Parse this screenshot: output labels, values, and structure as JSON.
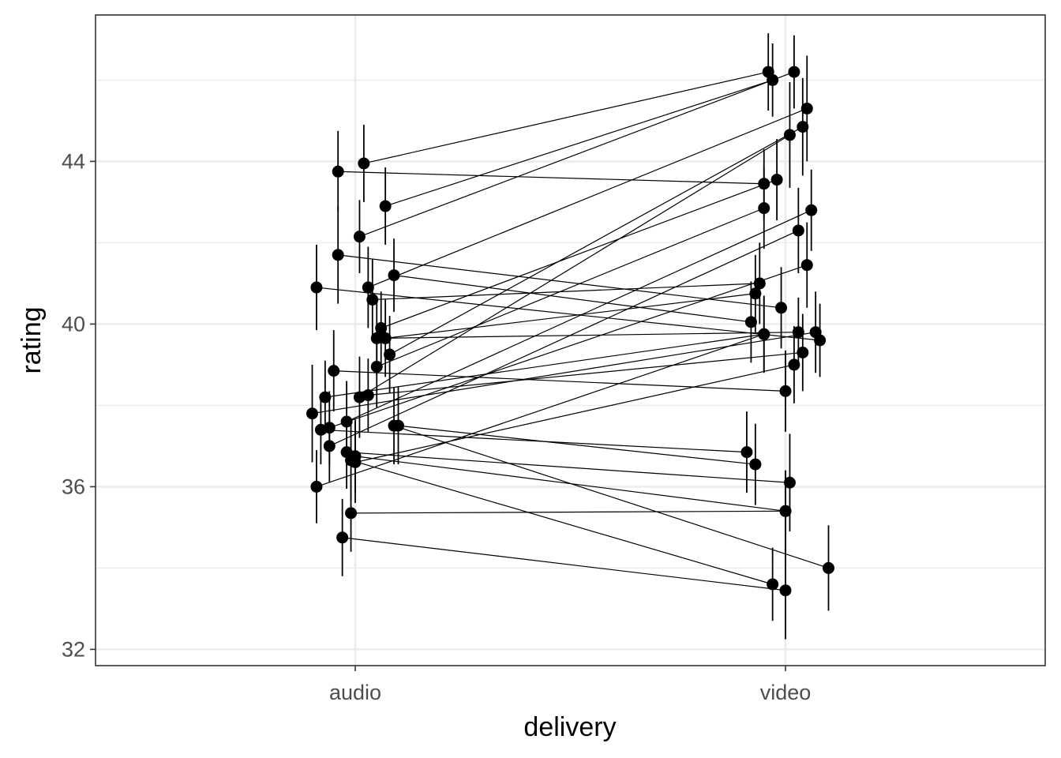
{
  "chart_data": {
    "type": "scatter",
    "style": "paired points with error bars, connected by lines",
    "xlabel": "delivery",
    "ylabel": "rating",
    "categories": [
      "audio",
      "video"
    ],
    "ylim": [
      31.6,
      47.6
    ],
    "y_ticks": [
      32,
      36,
      40,
      44
    ],
    "y_tick_labels": [
      "32",
      "36",
      "40",
      "44"
    ],
    "grid": true,
    "colors": {
      "points": "#000000",
      "lines": "#000000",
      "grid": "#ebebeb",
      "panel_border": "#333333"
    },
    "subjects": [
      {
        "audio": [
          0.02,
          43.95,
          0.95
        ],
        "video": [
          -0.04,
          46.2,
          0.95
        ]
      },
      {
        "audio": [
          -0.04,
          43.75,
          1.0
        ],
        "video": [
          -0.05,
          43.45,
          0.85
        ]
      },
      {
        "audio": [
          0.07,
          42.9,
          0.95
        ],
        "video": [
          -0.03,
          46.0,
          0.9
        ]
      },
      {
        "audio": [
          0.01,
          42.15,
          0.9
        ],
        "video": [
          0.02,
          46.2,
          0.9
        ]
      },
      {
        "audio": [
          -0.04,
          41.7,
          1.2
        ],
        "video": [
          -0.01,
          40.4,
          1.0
        ]
      },
      {
        "audio": [
          0.09,
          41.2,
          0.9
        ],
        "video": [
          -0.08,
          40.05,
          1.0
        ]
      },
      {
        "audio": [
          0.03,
          40.9,
          1.0
        ],
        "video": [
          0.05,
          45.3,
          1.3
        ]
      },
      {
        "audio": [
          -0.09,
          40.9,
          1.05
        ],
        "video": [
          0.08,
          39.6,
          0.9
        ]
      },
      {
        "audio": [
          0.04,
          40.6,
          1.0
        ],
        "video": [
          -0.06,
          41.0,
          1.0
        ]
      },
      {
        "audio": [
          0.05,
          39.65,
          0.9
        ],
        "video": [
          0.03,
          39.8,
          0.85
        ]
      },
      {
        "audio": [
          0.06,
          39.9,
          0.9
        ],
        "video": [
          -0.02,
          43.55,
          1.0
        ]
      },
      {
        "audio": [
          0.07,
          39.65,
          0.95
        ],
        "video": [
          -0.07,
          40.75,
          0.95
        ]
      },
      {
        "audio": [
          0.08,
          39.25,
          0.95
        ],
        "video": [
          0.04,
          44.85,
          1.2
        ]
      },
      {
        "audio": [
          0.05,
          38.95,
          1.0
        ],
        "video": [
          -0.05,
          42.85,
          1.0
        ]
      },
      {
        "audio": [
          -0.05,
          38.85,
          1.0
        ],
        "video": [
          0.0,
          38.35,
          1.0
        ]
      },
      {
        "audio": [
          0.01,
          38.2,
          1.0
        ],
        "video": [
          0.01,
          44.65,
          1.3
        ]
      },
      {
        "audio": [
          0.03,
          38.25,
          0.9
        ],
        "video": [
          0.04,
          39.3,
          0.95
        ]
      },
      {
        "audio": [
          -0.07,
          38.2,
          0.9
        ],
        "video": [
          -0.05,
          39.75,
          0.95
        ]
      },
      {
        "audio": [
          -0.1,
          37.8,
          1.2
        ],
        "video": [
          0.07,
          39.8,
          1.0
        ]
      },
      {
        "audio": [
          -0.02,
          37.6,
          1.0
        ],
        "video": [
          0.06,
          42.8,
          1.0
        ]
      },
      {
        "audio": [
          -0.08,
          37.4,
          0.85
        ],
        "video": [
          -0.09,
          36.85,
          1.0
        ]
      },
      {
        "audio": [
          -0.06,
          37.45,
          0.9
        ],
        "video": [
          0.05,
          41.45,
          1.05
        ]
      },
      {
        "audio": [
          0.1,
          37.5,
          0.95
        ],
        "video": [
          -0.07,
          36.55,
          1.0
        ]
      },
      {
        "audio": [
          -0.06,
          37.0,
          0.9
        ],
        "video": [
          0.03,
          42.3,
          1.05
        ]
      },
      {
        "audio": [
          -0.02,
          36.85,
          0.9
        ],
        "video": [
          0.01,
          36.1,
          1.2
        ]
      },
      {
        "audio": [
          -0.01,
          36.65,
          1.0
        ],
        "video": [
          -0.03,
          33.6,
          0.9
        ]
      },
      {
        "audio": [
          0.0,
          36.75,
          0.9
        ],
        "video": [
          0.0,
          35.4,
          1.0
        ]
      },
      {
        "audio": [
          0.0,
          36.6,
          1.0
        ],
        "video": [
          0.02,
          39.0,
          0.95
        ]
      },
      {
        "audio": [
          -0.09,
          36.0,
          0.9
        ],
        "video": [
          -0.05,
          39.75,
          0.9
        ]
      },
      {
        "audio": [
          -0.01,
          35.35,
          0.95
        ],
        "video": [
          0.0,
          35.4,
          1.0
        ]
      },
      {
        "audio": [
          -0.03,
          34.75,
          0.95
        ],
        "video": [
          0.0,
          33.45,
          1.2
        ]
      },
      {
        "audio": [
          0.09,
          37.5,
          0.95
        ],
        "video": [
          0.1,
          34.0,
          1.05
        ]
      }
    ]
  }
}
